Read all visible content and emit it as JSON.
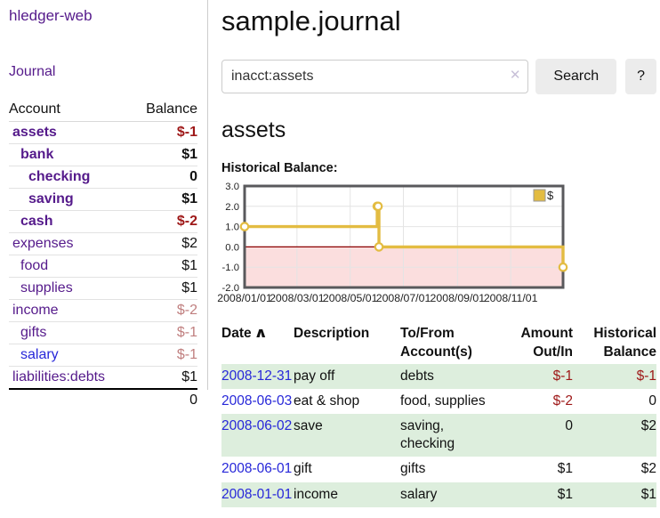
{
  "colors": {
    "accent_purple": "#551a8b",
    "link_blue": "#2727d9",
    "negative_strong": "#9e1818",
    "negative_soft": "#c07f7f",
    "row_stripe_green": "#ddeedd",
    "chart_line_gold": "#e3bc42",
    "chart_negative_region": "#fbdede",
    "chart_zero_line": "#8b0000"
  },
  "brand": {
    "title": "hledger-web"
  },
  "nav": {
    "journal": "Journal"
  },
  "sidebar": {
    "headers": {
      "account": "Account",
      "balance": "Balance"
    },
    "accounts": [
      {
        "name": "assets",
        "balance": "$-1",
        "depth": 1,
        "bold": true,
        "balance_tone": "negative-strong"
      },
      {
        "name": "bank",
        "balance": "$1",
        "depth": 2,
        "bold": true,
        "balance_tone": "normal"
      },
      {
        "name": "checking",
        "balance": "0",
        "depth": 3,
        "bold": true,
        "balance_tone": "normal"
      },
      {
        "name": "saving",
        "balance": "$1",
        "depth": 3,
        "bold": true,
        "balance_tone": "normal"
      },
      {
        "name": "cash",
        "balance": "$-2",
        "depth": 2,
        "bold": true,
        "balance_tone": "negative-strong"
      },
      {
        "name": "expenses",
        "balance": "$2",
        "depth": 1,
        "bold": false,
        "balance_tone": "normal"
      },
      {
        "name": "food",
        "balance": "$1",
        "depth": 2,
        "bold": false,
        "balance_tone": "normal"
      },
      {
        "name": "supplies",
        "balance": "$1",
        "depth": 2,
        "bold": false,
        "balance_tone": "normal"
      },
      {
        "name": "income",
        "balance": "$-2",
        "depth": 1,
        "bold": false,
        "balance_tone": "negative-soft"
      },
      {
        "name": "gifts",
        "balance": "$-1",
        "depth": 2,
        "bold": false,
        "balance_tone": "negative-soft"
      },
      {
        "name": "salary",
        "balance": "$-1",
        "depth": 2,
        "bold": false,
        "balance_tone": "negative-soft",
        "unvisited": true
      },
      {
        "name": "liabilities:debts",
        "balance": "$1",
        "depth": 1,
        "bold": false,
        "balance_tone": "normal"
      }
    ],
    "total": "0"
  },
  "main": {
    "title": "sample.journal",
    "search": {
      "value": "inacct:assets",
      "clear_glyph": "✕",
      "button_label": "Search",
      "help_label": "?"
    },
    "account_heading": "assets",
    "chart_title": "Historical Balance:"
  },
  "chart_data": {
    "type": "line",
    "step": true,
    "title": "Historical Balance",
    "legend": {
      "label": "$",
      "position": "top-right"
    },
    "xlim": [
      "2008-01-01",
      "2008-12-31"
    ],
    "ylim": [
      -2,
      3
    ],
    "grid": true,
    "y_ticks": [
      3.0,
      2.0,
      1.0,
      0.0,
      -1.0,
      -2.0
    ],
    "x_ticks": [
      {
        "date": "2008-01-01",
        "label": "2008/01/01"
      },
      {
        "date": "2008-03-01",
        "label": "2008/03/01"
      },
      {
        "date": "2008-05-01",
        "label": "2008/05/01"
      },
      {
        "date": "2008-07-01",
        "label": "2008/07/01"
      },
      {
        "date": "2008-09-01",
        "label": "2008/09/01"
      },
      {
        "date": "2008-11-01",
        "label": "2008/11/01"
      }
    ],
    "series": [
      {
        "name": "$",
        "points": [
          {
            "x": "2008-01-01",
            "y": 1
          },
          {
            "x": "2008-06-01",
            "y": 2
          },
          {
            "x": "2008-06-02",
            "y": 2
          },
          {
            "x": "2008-06-03",
            "y": 0
          },
          {
            "x": "2008-12-31",
            "y": -1
          }
        ]
      }
    ]
  },
  "register": {
    "headers": {
      "date": {
        "lines": [
          "Date"
        ],
        "sort_glyph": "∧"
      },
      "description": {
        "lines": [
          "Description"
        ]
      },
      "accounts": {
        "lines": [
          "To/From",
          "Account(s)"
        ]
      },
      "amount": {
        "lines": [
          "Amount",
          "Out/In"
        ]
      },
      "balance": {
        "lines": [
          "Historical",
          "Balance"
        ]
      }
    },
    "rows": [
      {
        "date": "2008-12-31",
        "description": "pay off",
        "accounts": [
          "debts"
        ],
        "amount": "$-1",
        "amount_negative": true,
        "balance": "$-1",
        "balance_negative": true
      },
      {
        "date": "2008-06-03",
        "description": "eat & shop",
        "accounts": [
          "food, supplies"
        ],
        "amount": "$-2",
        "amount_negative": true,
        "balance": "0",
        "balance_negative": false
      },
      {
        "date": "2008-06-02",
        "description": "save",
        "accounts": [
          "saving,",
          "checking"
        ],
        "amount": "0",
        "amount_negative": false,
        "balance": "$2",
        "balance_negative": false
      },
      {
        "date": "2008-06-01",
        "description": "gift",
        "accounts": [
          "gifts"
        ],
        "amount": "$1",
        "amount_negative": false,
        "balance": "$2",
        "balance_negative": false
      },
      {
        "date": "2008-01-01",
        "description": "income",
        "accounts": [
          "salary"
        ],
        "amount": "$1",
        "amount_negative": false,
        "balance": "$1",
        "balance_negative": false
      }
    ]
  }
}
